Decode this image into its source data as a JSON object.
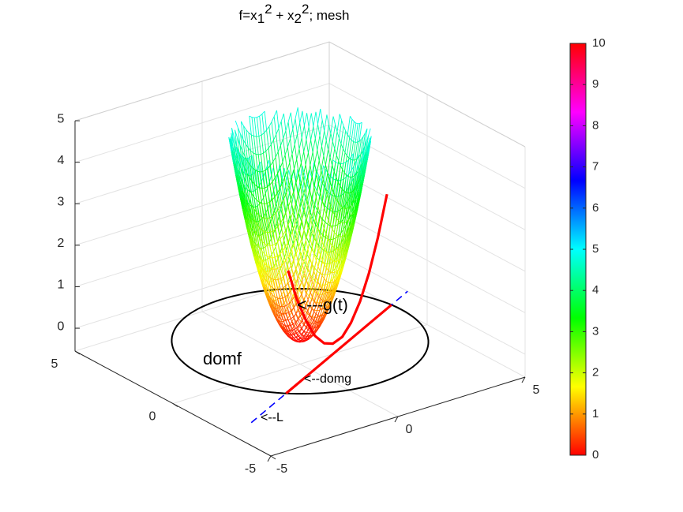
{
  "chart_data": {
    "type": "surface",
    "title_parts": [
      "f=x",
      "1",
      "2",
      " + x",
      "2",
      "2",
      "; mesh"
    ],
    "surface": {
      "function": "x1^2 + x2^2",
      "style": "mesh",
      "grid_min": -2.3,
      "grid_max": 2.3,
      "grid_step": 0.1,
      "z_shown_max": 5
    },
    "xlim": [
      -5,
      5
    ],
    "ylim": [
      -5,
      5
    ],
    "zlim": [
      -0.55,
      5
    ],
    "xticks": [
      -5,
      0,
      5
    ],
    "yticks": [
      -5,
      0,
      5
    ],
    "zticks": [
      0,
      1,
      2,
      3,
      4,
      5
    ],
    "xtick_labels": [
      "-5",
      "0",
      "5"
    ],
    "ytick_labels": [
      "-5",
      "0",
      "5"
    ],
    "ztick_labels": [
      "0",
      "1",
      "2",
      "3",
      "4",
      "5"
    ],
    "grid": true,
    "colormap": "hsv",
    "caxis": [
      0,
      10
    ],
    "colorbar": {
      "placement": "right",
      "ticks": [
        0,
        1,
        2,
        3,
        4,
        5,
        6,
        7,
        8,
        9,
        10
      ],
      "tick_labels": [
        "0",
        "1",
        "2",
        "3",
        "4",
        "5",
        "6",
        "7",
        "8",
        "9",
        "10"
      ]
    },
    "domf_circle": {
      "radius": 4,
      "z": 0,
      "color": "#000000"
    },
    "line_L": {
      "equation": "x1 - 2*x2 = 3",
      "x_range": [
        -5,
        5
      ],
      "color": "#0000ff",
      "style": "dashed"
    },
    "domg_segment": {
      "from": [
        -2.77,
        -2.885
      ],
      "to": [
        3.97,
        0.485
      ],
      "color": "#ff0000"
    },
    "g_curve": {
      "color": "#ff0000",
      "points": [
        [
          -2.47,
          -2.6,
          2.83
        ],
        [
          -1.9,
          -2.31,
          1.95
        ],
        [
          -1.32,
          -2.03,
          1.25
        ],
        [
          -0.75,
          -1.74,
          0.71
        ],
        [
          -0.17,
          -1.45,
          0.35
        ],
        [
          0.4,
          -1.16,
          0.16
        ],
        [
          0.98,
          -0.88,
          0.14
        ],
        [
          1.55,
          -0.59,
          0.3
        ],
        [
          2.13,
          -0.3,
          0.63
        ],
        [
          2.7,
          -0.02,
          1.14
        ],
        [
          3.27,
          0.27,
          1.81
        ],
        [
          3.85,
          0.56,
          2.67
        ]
      ]
    },
    "annotations": {
      "g": "<---g(t)",
      "domf": "domf",
      "domg": "<--domg",
      "L": "<--L"
    }
  }
}
